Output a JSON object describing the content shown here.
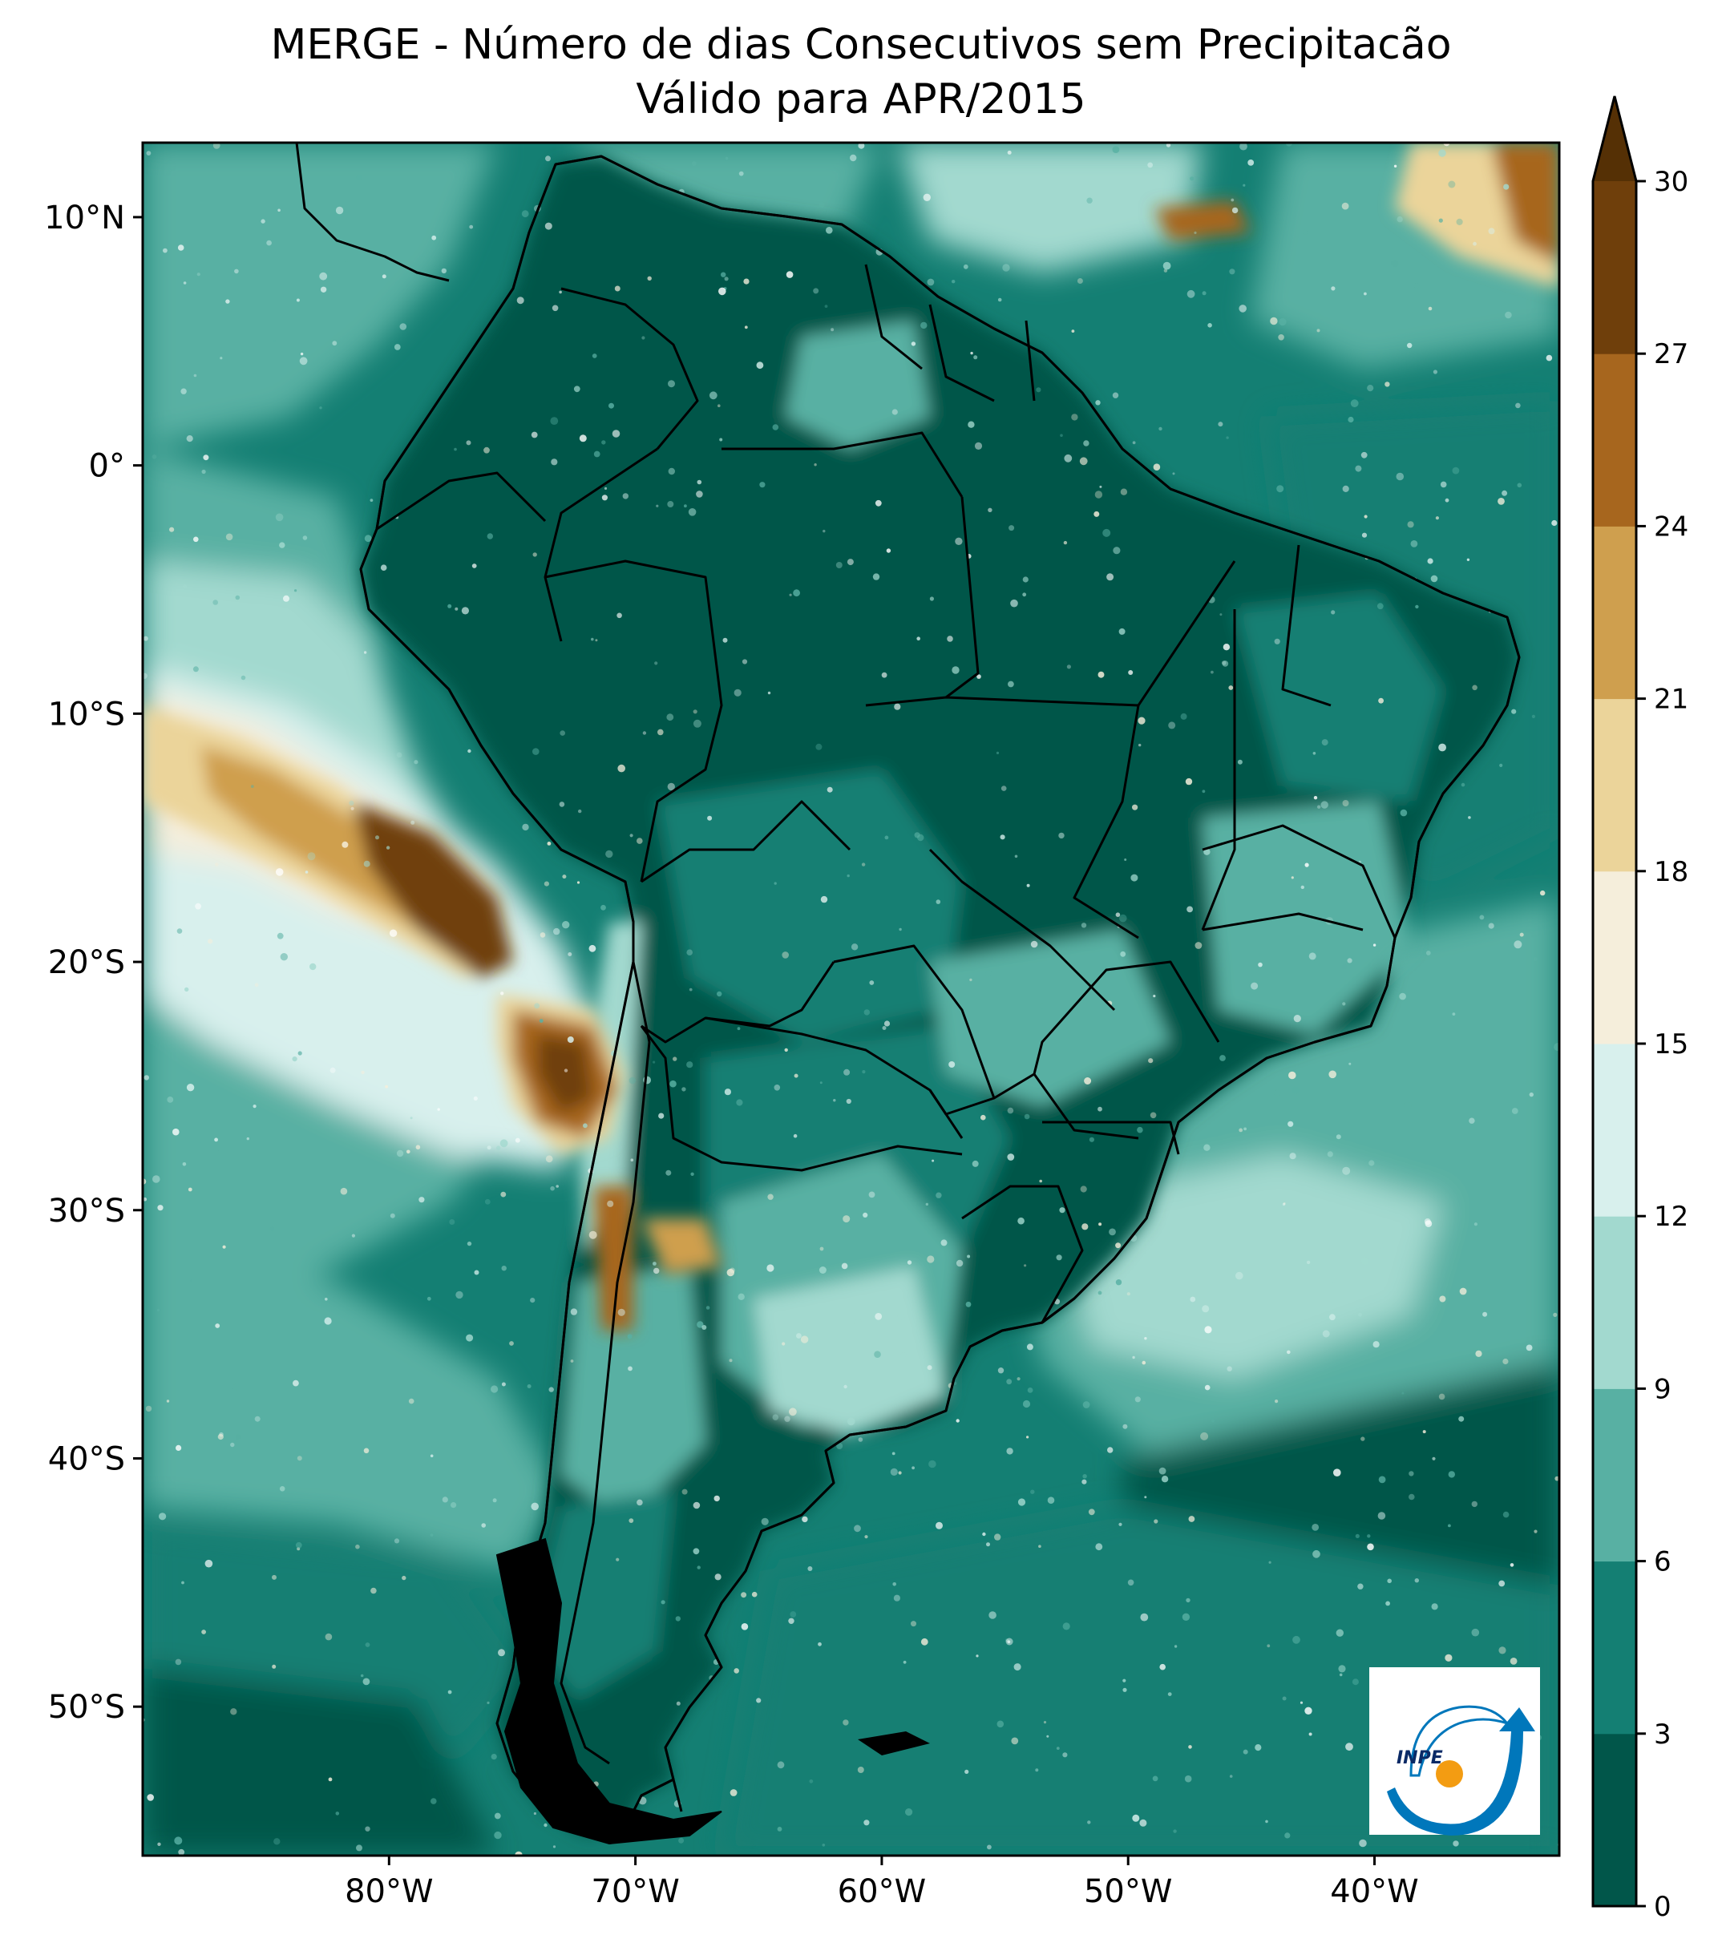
{
  "title_line1": "MERGE - Número de dias Consecutivos sem Precipitacão",
  "title_line2": "Válido para APR/2015",
  "lat_ticks": [
    {
      "value": 10,
      "label": "10°N"
    },
    {
      "value": 0,
      "label": "0°"
    },
    {
      "value": -10,
      "label": "10°S"
    },
    {
      "value": -20,
      "label": "20°S"
    },
    {
      "value": -30,
      "label": "30°S"
    },
    {
      "value": -40,
      "label": "40°S"
    },
    {
      "value": -50,
      "label": "50°S"
    }
  ],
  "lon_ticks": [
    {
      "value": -80,
      "label": "80°W"
    },
    {
      "value": -70,
      "label": "70°W"
    },
    {
      "value": -60,
      "label": "60°W"
    },
    {
      "value": -50,
      "label": "50°W"
    },
    {
      "value": -40,
      "label": "40°W"
    }
  ],
  "extent": {
    "lon_min": -90,
    "lon_max": -32.5,
    "lat_min": -56,
    "lat_max": 13
  },
  "colorbar": {
    "levels": [
      0,
      3,
      6,
      9,
      12,
      15,
      18,
      21,
      24,
      27,
      30
    ],
    "labels": [
      "0",
      "3",
      "6",
      "9",
      "12",
      "15",
      "18",
      "21",
      "24",
      "27",
      "30"
    ],
    "colors": [
      "#01564a",
      "#147f73",
      "#58b0a3",
      "#a2d9cf",
      "#d8f0ed",
      "#f5eedb",
      "#ebd49a",
      "#cf9f4e",
      "#a7661e",
      "#6f3f0b"
    ],
    "extend_color": "#553005"
  },
  "logo_text": "INPE"
}
